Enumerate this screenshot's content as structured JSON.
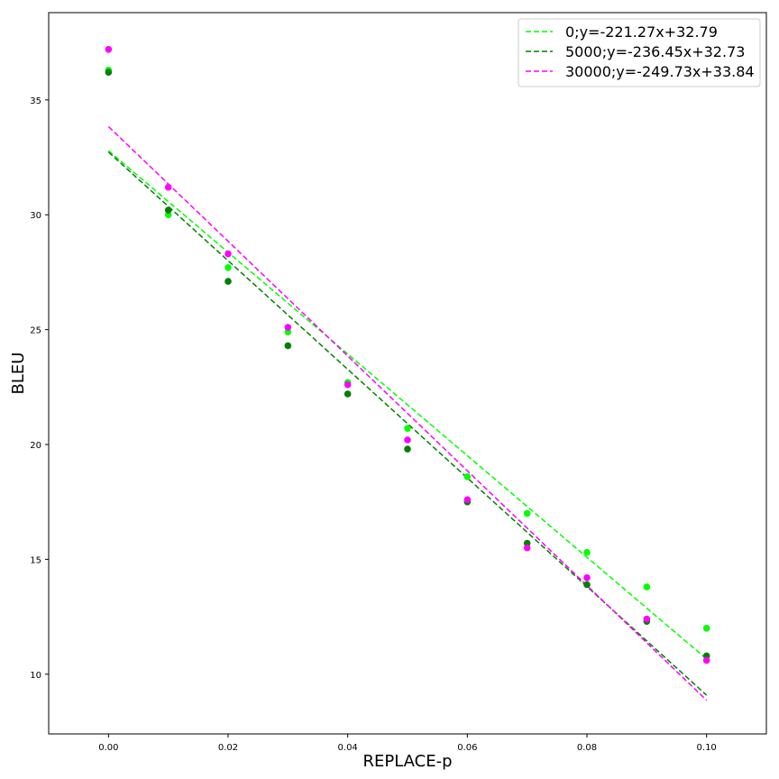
{
  "chart_data": {
    "type": "scatter",
    "xlabel": "REPLACE-p",
    "ylabel": "BLEU",
    "xlim": [
      -0.01,
      0.11
    ],
    "ylim": [
      7.4,
      38.8
    ],
    "x_ticks": [
      0.0,
      0.02,
      0.04,
      0.06,
      0.08,
      0.1
    ],
    "x_tick_labels": [
      "0.00",
      "0.02",
      "0.04",
      "0.06",
      "0.08",
      "0.10"
    ],
    "y_ticks": [
      10,
      15,
      20,
      25,
      30,
      35
    ],
    "y_tick_labels": [
      "10",
      "15",
      "20",
      "25",
      "30",
      "35"
    ],
    "grid": false,
    "legend_position": "top-right",
    "series": [
      {
        "name": "0;y=-221.27x+32.79",
        "color": "#00ff00",
        "x": [
          0.0,
          0.01,
          0.02,
          0.03,
          0.04,
          0.05,
          0.06,
          0.07,
          0.08,
          0.09,
          0.1
        ],
        "y": [
          36.3,
          30.0,
          27.7,
          24.9,
          22.7,
          20.7,
          18.6,
          17.0,
          15.3,
          13.8,
          12.0
        ],
        "fit": {
          "slope": -221.27,
          "intercept": 32.79
        }
      },
      {
        "name": "5000;y=-236.45x+32.73",
        "color": "#008000",
        "x": [
          0.0,
          0.01,
          0.02,
          0.03,
          0.04,
          0.05,
          0.06,
          0.07,
          0.08,
          0.09,
          0.1
        ],
        "y": [
          36.2,
          30.2,
          27.1,
          24.3,
          22.2,
          19.8,
          17.5,
          15.7,
          13.9,
          12.3,
          10.8
        ],
        "fit": {
          "slope": -236.45,
          "intercept": 32.73
        }
      },
      {
        "name": "30000;y=-249.73x+33.84",
        "color": "#ff00ff",
        "x": [
          0.0,
          0.01,
          0.02,
          0.03,
          0.04,
          0.05,
          0.06,
          0.07,
          0.08,
          0.09,
          0.1
        ],
        "y": [
          37.2,
          31.2,
          28.3,
          25.1,
          22.6,
          20.2,
          17.6,
          15.5,
          14.2,
          12.4,
          10.6
        ],
        "fit": {
          "slope": -249.73,
          "intercept": 33.84
        }
      }
    ]
  }
}
